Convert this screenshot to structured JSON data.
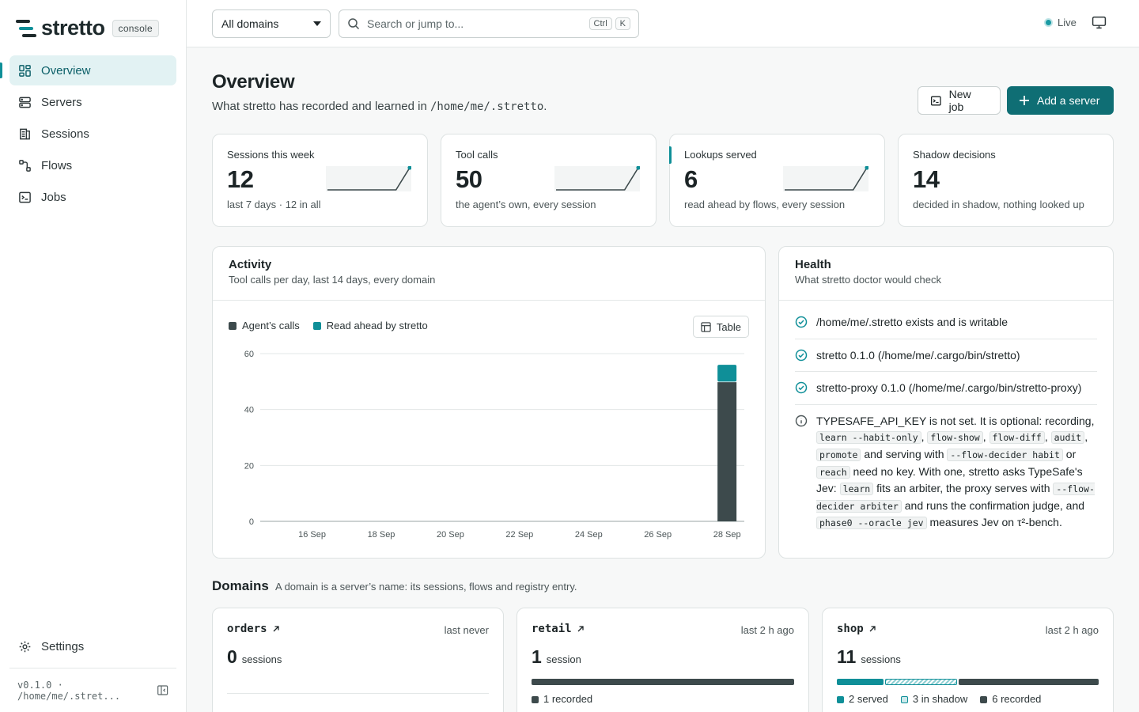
{
  "brand": {
    "name": "stretto",
    "badge": "console"
  },
  "nav": {
    "items": [
      {
        "label": "Overview",
        "icon": "dashboard-icon",
        "active": true
      },
      {
        "label": "Servers",
        "icon": "server-icon"
      },
      {
        "label": "Sessions",
        "icon": "sessions-icon"
      },
      {
        "label": "Flows",
        "icon": "flows-icon"
      },
      {
        "label": "Jobs",
        "icon": "terminal-icon"
      }
    ],
    "settings": "Settings",
    "footer": "v0.1.0 · /home/me/.stret..."
  },
  "topbar": {
    "domain_select": "All domains",
    "search_placeholder": "Search or jump to...",
    "kbd_ctrl": "Ctrl",
    "kbd_k": "K",
    "live": "Live"
  },
  "page": {
    "title": "Overview",
    "subtitle_pre": "What stretto has recorded and learned in",
    "subtitle_path": "/home/me/.stretto",
    "subtitle_post": ".",
    "new_job": "New job",
    "add_server": "Add a server"
  },
  "stats": [
    {
      "label": "Sessions this week",
      "value": "12",
      "note": "last 7 days · 12 in all",
      "sparkline": [
        0,
        0,
        0,
        0,
        0,
        0,
        12
      ]
    },
    {
      "label": "Tool calls",
      "value": "50",
      "note": "the agent’s own, every session",
      "sparkline": [
        0,
        0,
        0,
        0,
        0,
        0,
        50
      ]
    },
    {
      "label": "Lookups served",
      "value": "6",
      "note": "read ahead by flows, every session",
      "sparkline": [
        0,
        0,
        0,
        0,
        0,
        0,
        6
      ]
    },
    {
      "label": "Shadow decisions",
      "value": "14",
      "note": "decided in shadow, nothing looked up"
    }
  ],
  "activity": {
    "title": "Activity",
    "subtitle": "Tool calls per day, last 14 days, every domain",
    "table_button": "Table"
  },
  "chart_data": {
    "type": "bar",
    "stacked": true,
    "x": [
      "15 Sep",
      "16 Sep",
      "17 Sep",
      "18 Sep",
      "19 Sep",
      "20 Sep",
      "21 Sep",
      "22 Sep",
      "23 Sep",
      "24 Sep",
      "25 Sep",
      "26 Sep",
      "27 Sep",
      "28 Sep"
    ],
    "tick_labels": [
      "16 Sep",
      "18 Sep",
      "20 Sep",
      "22 Sep",
      "24 Sep",
      "26 Sep",
      "28 Sep"
    ],
    "series": [
      {
        "name": "Agent’s calls",
        "color": "#3d4a4c",
        "values": [
          0,
          0,
          0,
          0,
          0,
          0,
          0,
          0,
          0,
          0,
          0,
          0,
          0,
          50
        ]
      },
      {
        "name": "Read ahead by stretto",
        "color": "#0f8f98",
        "values": [
          0,
          0,
          0,
          0,
          0,
          0,
          0,
          0,
          0,
          0,
          0,
          0,
          0,
          6
        ]
      }
    ],
    "yticks": [
      0,
      20,
      40,
      60
    ],
    "ylim": [
      0,
      60
    ],
    "grid": true,
    "legend": "top-left"
  },
  "health": {
    "title": "Health",
    "subtitle": "What stretto doctor would check",
    "checks": [
      "/home/me/.stretto exists and is writable",
      "stretto 0.1.0 (/home/me/.cargo/bin/stretto)",
      "stretto-proxy 0.1.0 (/home/me/.cargo/bin/stretto-proxy)"
    ],
    "info": {
      "t1": "TYPESAFE_API_KEY is not set. It is optional: recording,",
      "c1": "learn --habit-only",
      "t2": ",",
      "c2": "flow-show",
      "t3": ",",
      "c3": "flow-diff",
      "t4": ",",
      "c4": "audit",
      "t5": ",",
      "c5": "promote",
      "t6": "and serving with",
      "c6": "--flow-decider habit",
      "t7": "or",
      "c7": "reach",
      "t8": "need no key. With one, stretto asks TypeSafe's Jev:",
      "c8": "learn",
      "t9": "fits an arbiter, the proxy serves with",
      "c9": "--flow-decider arbiter",
      "t10": "and runs the confirmation judge, and",
      "c10": "phase0 --oracle jev",
      "t11": "measures Jev on τ²-bench."
    }
  },
  "domains": {
    "title": "Domains",
    "subtitle": "A domain is a server’s name: its sessions, flows and registry entry.",
    "cards": [
      {
        "name": "orders",
        "last": "last never",
        "count": "0",
        "unit": "sessions"
      },
      {
        "name": "retail",
        "last": "last 2 h ago",
        "count": "1",
        "unit": "session",
        "recorded": "1 recorded"
      },
      {
        "name": "shop",
        "last": "last 2 h ago",
        "count": "11",
        "unit": "sessions",
        "served": "2 served",
        "shadow": "3 in shadow",
        "recorded": "6 recorded"
      }
    ]
  },
  "colors": {
    "accent": "#0f8f98",
    "primary": "#0f6e74",
    "dark_bar": "#3d4a4c"
  }
}
